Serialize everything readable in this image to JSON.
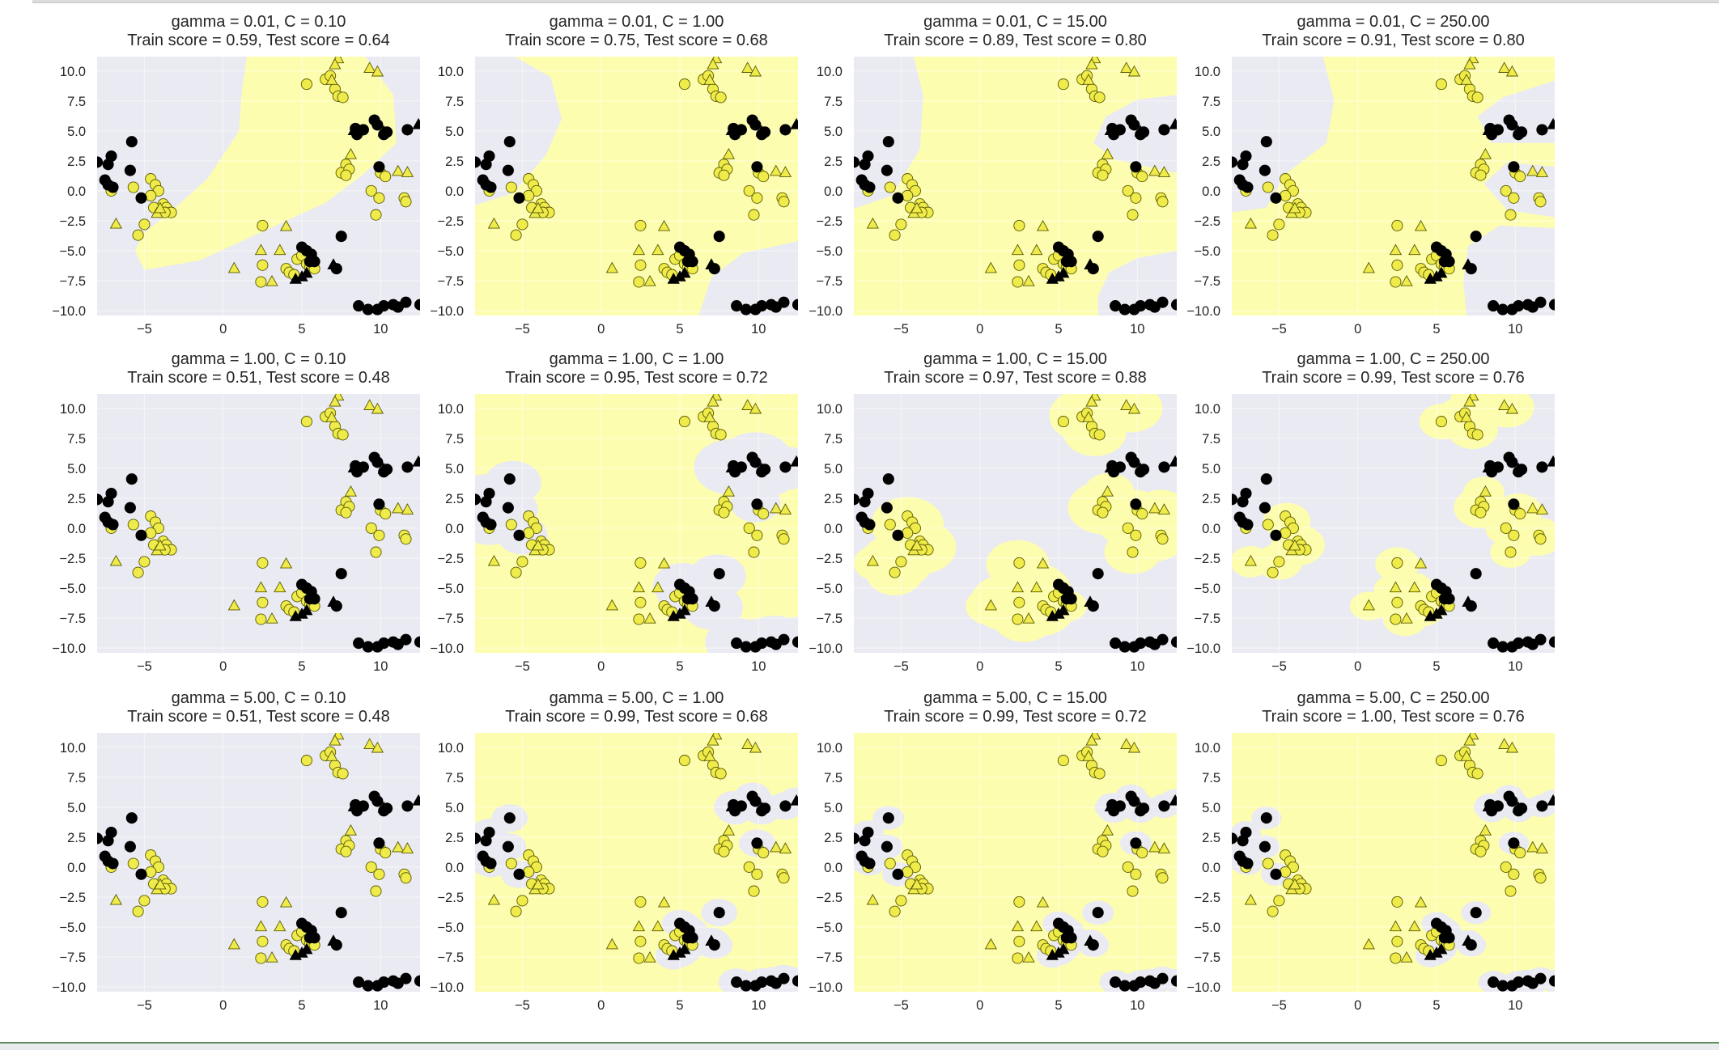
{
  "figure": {
    "background": "#ffffff",
    "axes_background": "#eaeaf2",
    "grid_color": "#ffffff",
    "class_colors": {
      "black_region": "#eaeaf2",
      "yellow_region": "#fdfdb0",
      "black_marker": "#000000",
      "yellow_marker": "#eeeb4a"
    },
    "xticks": [
      "−5",
      "0",
      "5",
      "10"
    ],
    "yticks": [
      "10.0",
      "7.5",
      "5.0",
      "2.5",
      "0.0",
      "−2.5",
      "−5.0",
      "−7.5",
      "−10.0"
    ]
  },
  "chart_data": [
    {
      "type": "scatter",
      "gamma": "0.01",
      "C": "0.10",
      "title_line1": "gamma = 0.01, C = 0.10",
      "title_line2": "Train score = 0.59, Test score = 0.64",
      "xlim": [
        -8,
        12.5
      ],
      "ylim": [
        -10.4,
        11.2
      ]
    },
    {
      "type": "scatter",
      "gamma": "0.01",
      "C": "1.00",
      "title_line1": "gamma = 0.01, C = 1.00",
      "title_line2": "Train score = 0.75, Test score = 0.68",
      "xlim": [
        -8,
        12.5
      ],
      "ylim": [
        -10.4,
        11.2
      ]
    },
    {
      "type": "scatter",
      "gamma": "0.01",
      "C": "15.00",
      "title_line1": "gamma = 0.01, C = 15.00",
      "title_line2": "Train score = 0.89, Test score = 0.80",
      "xlim": [
        -8,
        12.5
      ],
      "ylim": [
        -10.4,
        11.2
      ]
    },
    {
      "type": "scatter",
      "gamma": "0.01",
      "C": "250.00",
      "title_line1": "gamma = 0.01, C = 250.00",
      "title_line2": "Train score = 0.91, Test score = 0.80",
      "xlim": [
        -8,
        12.5
      ],
      "ylim": [
        -10.4,
        11.2
      ]
    },
    {
      "type": "scatter",
      "gamma": "1.00",
      "C": "0.10",
      "title_line1": "gamma = 1.00, C = 0.10",
      "title_line2": "Train score = 0.51, Test score = 0.48",
      "xlim": [
        -8,
        12.5
      ],
      "ylim": [
        -10.4,
        11.2
      ]
    },
    {
      "type": "scatter",
      "gamma": "1.00",
      "C": "1.00",
      "title_line1": "gamma = 1.00, C = 1.00",
      "title_line2": "Train score = 0.95, Test score = 0.72",
      "xlim": [
        -8,
        12.5
      ],
      "ylim": [
        -10.4,
        11.2
      ]
    },
    {
      "type": "scatter",
      "gamma": "1.00",
      "C": "15.00",
      "title_line1": "gamma = 1.00, C = 15.00",
      "title_line2": "Train score = 0.97, Test score = 0.88",
      "xlim": [
        -8,
        12.5
      ],
      "ylim": [
        -10.4,
        11.2
      ]
    },
    {
      "type": "scatter",
      "gamma": "1.00",
      "C": "250.00",
      "title_line1": "gamma = 1.00, C = 250.00",
      "title_line2": "Train score = 0.99, Test score = 0.76",
      "xlim": [
        -8,
        12.5
      ],
      "ylim": [
        -10.4,
        11.2
      ]
    },
    {
      "type": "scatter",
      "gamma": "5.00",
      "C": "0.10",
      "title_line1": "gamma = 5.00, C = 0.10",
      "title_line2": "Train score = 0.51, Test score = 0.48",
      "xlim": [
        -8,
        12.5
      ],
      "ylim": [
        -10.4,
        11.2
      ]
    },
    {
      "type": "scatter",
      "gamma": "5.00",
      "C": "1.00",
      "title_line1": "gamma = 5.00, C = 1.00",
      "title_line2": "Train score = 0.99, Test score = 0.68",
      "xlim": [
        -8,
        12.5
      ],
      "ylim": [
        -10.4,
        11.2
      ]
    },
    {
      "type": "scatter",
      "gamma": "5.00",
      "C": "15.00",
      "title_line1": "gamma = 5.00, C = 15.00",
      "title_line2": "Train score = 0.99, Test score = 0.72",
      "xlim": [
        -8,
        12.5
      ],
      "ylim": [
        -10.4,
        11.2
      ]
    },
    {
      "type": "scatter",
      "gamma": "5.00",
      "C": "250.00",
      "title_line1": "gamma = 5.00, C = 250.00",
      "title_line2": "Train score = 1.00, Test score = 0.76",
      "xlim": [
        -8,
        12.5
      ],
      "ylim": [
        -10.4,
        11.2
      ]
    }
  ],
  "points": {
    "yellow_train": [
      [
        5.3,
        8.9
      ],
      [
        6.5,
        9.3
      ],
      [
        6.8,
        9.6
      ],
      [
        7.1,
        8.5
      ],
      [
        7.3,
        7.9
      ],
      [
        7.6,
        7.8
      ],
      [
        7.8,
        2.2
      ],
      [
        7.5,
        1.5
      ],
      [
        8.0,
        1.8
      ],
      [
        7.8,
        1.3
      ],
      [
        10.0,
        1.5
      ],
      [
        10.3,
        1.2
      ],
      [
        9.4,
        0.0
      ],
      [
        9.9,
        -0.6
      ],
      [
        11.5,
        -0.6
      ],
      [
        11.6,
        -0.9
      ],
      [
        9.7,
        -2.0
      ],
      [
        -5.7,
        0.3
      ],
      [
        -4.6,
        1.0
      ],
      [
        -4.3,
        0.5
      ],
      [
        -4.1,
        0.0
      ],
      [
        -4.6,
        -0.4
      ],
      [
        -3.8,
        -1.1
      ],
      [
        -3.6,
        -1.4
      ],
      [
        -3.3,
        -1.8
      ],
      [
        -3.7,
        -1.8
      ],
      [
        -4.4,
        -1.4
      ],
      [
        -5.0,
        -2.8
      ],
      [
        -5.4,
        -3.7
      ],
      [
        -7.1,
        0.0
      ],
      [
        2.5,
        -2.9
      ],
      [
        2.5,
        -6.2
      ],
      [
        2.4,
        -7.6
      ],
      [
        4.0,
        -6.5
      ],
      [
        4.2,
        -6.8
      ],
      [
        4.7,
        -5.7
      ],
      [
        5.0,
        -5.4
      ],
      [
        5.3,
        -6.1
      ],
      [
        5.5,
        -6.4
      ],
      [
        5.8,
        -6.5
      ],
      [
        4.5,
        -7.0
      ]
    ],
    "yellow_test": [
      [
        7.3,
        11.0
      ],
      [
        7.1,
        10.5
      ],
      [
        6.9,
        9.2
      ],
      [
        9.3,
        10.2
      ],
      [
        9.8,
        9.9
      ],
      [
        8.1,
        3.0
      ],
      [
        11.1,
        1.6
      ],
      [
        11.7,
        1.5
      ],
      [
        -6.8,
        -2.8
      ],
      [
        -4.2,
        -1.9
      ],
      [
        -4.0,
        -1.5
      ],
      [
        4.0,
        -3.0
      ],
      [
        2.4,
        -5.0
      ],
      [
        3.6,
        -5.0
      ],
      [
        0.7,
        -6.5
      ],
      [
        3.1,
        -7.6
      ]
    ],
    "black_train": [
      [
        -8.0,
        2.4
      ],
      [
        -7.3,
        2.2
      ],
      [
        -7.1,
        2.9
      ],
      [
        -7.5,
        0.9
      ],
      [
        -7.3,
        0.5
      ],
      [
        -7.0,
        0.3
      ],
      [
        -5.8,
        4.1
      ],
      [
        -5.9,
        1.7
      ],
      [
        -5.2,
        -0.6
      ],
      [
        8.4,
        5.2
      ],
      [
        8.5,
        4.7
      ],
      [
        8.9,
        5.1
      ],
      [
        9.6,
        5.9
      ],
      [
        9.8,
        5.5
      ],
      [
        10.2,
        4.7
      ],
      [
        10.4,
        4.9
      ],
      [
        11.7,
        5.1
      ],
      [
        9.9,
        2.0
      ],
      [
        5.0,
        -4.7
      ],
      [
        5.3,
        -5.0
      ],
      [
        5.6,
        -5.3
      ],
      [
        5.8,
        -5.9
      ],
      [
        5.5,
        -5.9
      ],
      [
        7.5,
        -3.8
      ],
      [
        7.2,
        -6.5
      ],
      [
        8.6,
        -9.6
      ],
      [
        9.2,
        -9.9
      ],
      [
        9.8,
        -9.9
      ],
      [
        10.2,
        -9.6
      ],
      [
        10.8,
        -9.5
      ],
      [
        11.1,
        -9.7
      ],
      [
        11.6,
        -9.3
      ],
      [
        12.5,
        -9.5
      ]
    ],
    "black_test": [
      [
        8.3,
        5.0
      ],
      [
        10.2,
        4.9
      ],
      [
        12.4,
        5.5
      ],
      [
        5.0,
        -7.2
      ],
      [
        4.6,
        -7.4
      ],
      [
        5.3,
        -6.9
      ],
      [
        7.0,
        -6.2
      ]
    ]
  }
}
